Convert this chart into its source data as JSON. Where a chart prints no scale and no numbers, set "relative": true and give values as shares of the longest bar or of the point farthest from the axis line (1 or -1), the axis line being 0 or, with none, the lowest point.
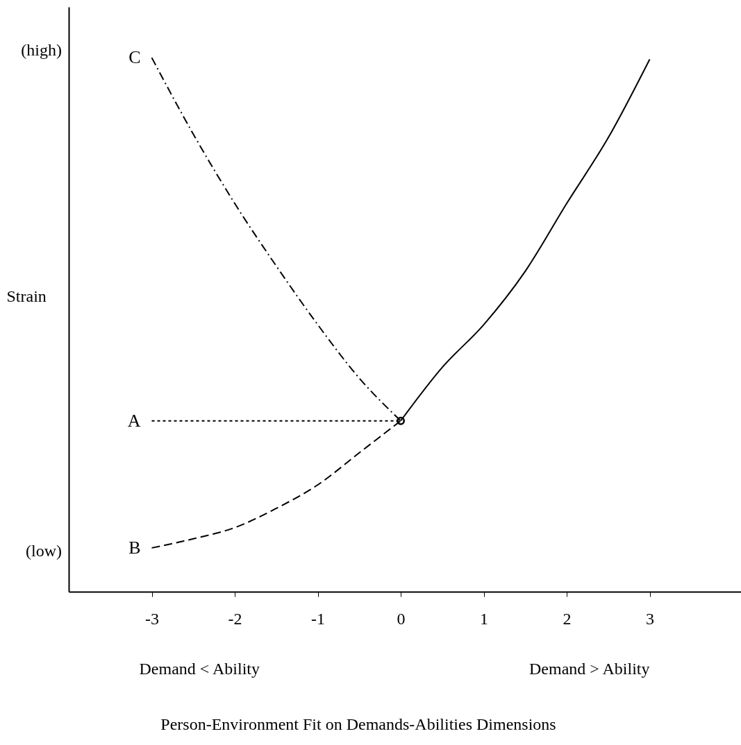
{
  "chart_data": {
    "type": "line",
    "relative": true,
    "ylabel": "Strain",
    "annotations": [
      "(high)",
      "(low)",
      "Demand < Ability",
      "Demand > Ability",
      "Person-Environment Fit on Demands-Abilities Dimensions"
    ],
    "xlim": [
      -4,
      4.1
    ],
    "xticks": [
      -3,
      -2,
      -1,
      0,
      1,
      2,
      3
    ],
    "tick_labels": "x",
    "series": [
      {
        "name": "C",
        "color": "#000000",
        "line_style": "dashdot",
        "x": [
          -3,
          -2.5,
          -2,
          -1.5,
          -1,
          -0.5,
          0
        ],
        "values": [
          1.0,
          0.857,
          0.727,
          0.61,
          0.5,
          0.4,
          0.32
        ]
      },
      {
        "name": "A",
        "color": "#000000",
        "line_style": "dotted",
        "x": [
          -3,
          0
        ],
        "values": [
          0.32,
          0.32
        ]
      },
      {
        "name": "B",
        "color": "#000000",
        "line_style": "dashed",
        "x": [
          -3,
          -2.5,
          -2,
          -1.5,
          -1,
          -0.5,
          0
        ],
        "values": [
          0.082,
          0.099,
          0.12,
          0.156,
          0.2,
          0.26,
          0.32
        ]
      },
      {
        "color": "#000000",
        "line_style": "solid",
        "x": [
          0,
          0.5,
          1,
          1.5,
          2,
          2.5,
          3
        ],
        "values": [
          0.32,
          0.42,
          0.5,
          0.6,
          0.727,
          0.85,
          0.997
        ]
      },
      {
        "type": "scatter",
        "marker": "circle",
        "color": "#000000",
        "x": [
          0
        ],
        "values": [
          0.32
        ]
      }
    ]
  }
}
